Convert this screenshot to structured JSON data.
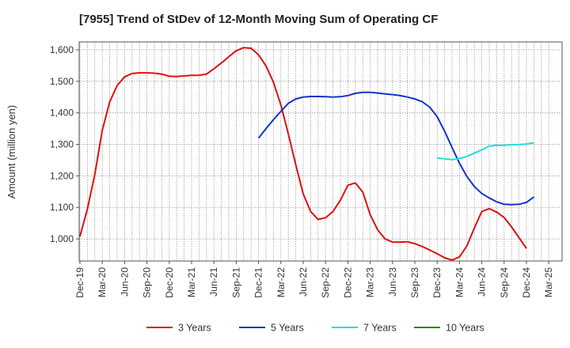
{
  "chart_data": {
    "type": "line",
    "title": "[7955]  Trend of StDev of 12-Month Moving Sum of Operating CF",
    "xlabel": "",
    "ylabel": "Amount (million yen)",
    "ylim": [
      930,
      1625
    ],
    "yticks": [
      1000,
      1100,
      1200,
      1300,
      1400,
      1500,
      1600
    ],
    "ytick_labels": [
      "1,000",
      "1,100",
      "1,200",
      "1,300",
      "1,400",
      "1,500",
      "1,600"
    ],
    "x_tick_labels": [
      "Dec-19",
      "Mar-20",
      "Jun-20",
      "Sep-20",
      "Dec-20",
      "Mar-21",
      "Jun-21",
      "Sep-21",
      "Dec-21",
      "Mar-22",
      "Jun-22",
      "Sep-22",
      "Dec-22",
      "Mar-23",
      "Jun-23",
      "Sep-23",
      "Dec-23",
      "Mar-24",
      "Jun-24",
      "Sep-24",
      "Dec-24",
      "Mar-25"
    ],
    "x_months_per_step": 1,
    "grid": true,
    "legend_position": "bottom",
    "series": [
      {
        "name": "3 Years",
        "color": "#dd1111",
        "start_month": 0,
        "values": [
          1008,
          1095,
          1205,
          1345,
          1435,
          1487,
          1514,
          1525,
          1527,
          1527,
          1526,
          1523,
          1516,
          1515,
          1517,
          1519,
          1519,
          1523,
          1540,
          1558,
          1578,
          1597,
          1607,
          1605,
          1584,
          1549,
          1497,
          1425,
          1333,
          1235,
          1143,
          1087,
          1062,
          1067,
          1087,
          1123,
          1170,
          1178,
          1149,
          1077,
          1029,
          1000,
          990,
          990,
          991,
          985,
          976,
          965,
          953,
          940,
          933,
          943,
          978,
          1035,
          1087,
          1096,
          1085,
          1068,
          1038,
          1004,
          970
        ]
      },
      {
        "name": "5 Years",
        "color": "#1133cc",
        "start_month": 24,
        "values": [
          1320,
          1350,
          1378,
          1405,
          1430,
          1444,
          1450,
          1452,
          1452,
          1451,
          1450,
          1451,
          1455,
          1462,
          1465,
          1465,
          1463,
          1460,
          1458,
          1455,
          1450,
          1444,
          1435,
          1418,
          1388,
          1342,
          1290,
          1240,
          1198,
          1166,
          1144,
          1130,
          1118,
          1110,
          1109,
          1110,
          1116,
          1133
        ]
      },
      {
        "name": "7 Years",
        "color": "#22dddd",
        "start_month": 48,
        "values": [
          1257,
          1254,
          1252,
          1255,
          1262,
          1272,
          1283,
          1294,
          1297,
          1297,
          1299,
          1299,
          1301,
          1305
        ]
      },
      {
        "name": "10 Years",
        "color": "#228822",
        "start_month": 0,
        "values": []
      }
    ]
  }
}
